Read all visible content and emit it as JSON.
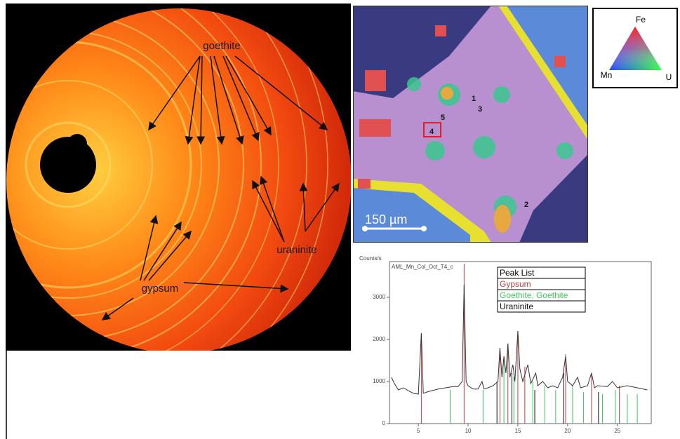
{
  "diffraction_labels": [
    "goethite",
    "uraninite",
    "gypsum"
  ],
  "map": {
    "points": [
      "1",
      "2",
      "3",
      "4",
      "5"
    ],
    "scale_bar": "150 µm"
  },
  "ternary": {
    "top": "Fe",
    "left": "Mn",
    "right": "U"
  },
  "chart_data": {
    "type": "line",
    "y_label": "Counts/s",
    "legend_title": "Peak List",
    "xlim": [
      2.1,
      28.4
    ],
    "xticks": [
      5,
      10,
      15,
      20,
      25
    ],
    "ylim": [
      0,
      3850
    ],
    "yticks": [
      0,
      1000,
      2000,
      3000
    ],
    "series": [
      {
        "name": "AML_Mn_Col_Oct_T4_c",
        "kind": "line",
        "color": "#333333",
        "x": [
          2.3,
          2.6,
          3,
          3.5,
          4,
          4.5,
          5,
          5.3,
          5.5,
          6,
          7,
          8,
          8.5,
          9,
          9.4,
          9.6,
          9.8,
          10,
          10.5,
          11,
          11.4,
          11.6,
          12,
          12.5,
          13,
          13.2,
          13.4,
          13.6,
          13.8,
          14,
          14.2,
          14.5,
          14.7,
          15,
          15.2,
          15.5,
          16,
          16.3,
          16.8,
          17,
          17.5,
          18,
          18.5,
          19,
          19.5,
          19.8,
          20,
          20.5,
          21,
          21.3,
          22,
          22.4,
          22.7,
          23,
          24,
          24.5,
          25,
          26,
          27,
          28
        ],
        "values": [
          1100,
          950,
          800,
          850,
          780,
          720,
          700,
          2150,
          720,
          760,
          820,
          860,
          880,
          880,
          1000,
          3300,
          1000,
          900,
          820,
          820,
          1000,
          820,
          850,
          900,
          1000,
          1800,
          1100,
          1600,
          1200,
          1900,
          1100,
          1400,
          1000,
          2200,
          1300,
          1000,
          1400,
          950,
          1200,
          900,
          1000,
          850,
          900,
          850,
          1100,
          1600,
          1000,
          900,
          1100,
          850,
          900,
          1200,
          850,
          900,
          880,
          1000,
          850,
          900,
          850,
          800
        ]
      },
      {
        "name": "Gypsum",
        "kind": "stick",
        "color": "#c0404a",
        "x": [
          5.3,
          9.6,
          13.2,
          14,
          15,
          15.7,
          19.8,
          22.4,
          25.2
        ],
        "values": [
          2150,
          3800,
          1800,
          1900,
          2200,
          1350,
          1650,
          1150,
          900
        ]
      },
      {
        "name": "Goethite, Goethite",
        "kind": "stick",
        "color": "#3cc85a",
        "x": [
          8.2,
          11.5,
          13.6,
          14.6,
          16.5,
          17.7,
          18.8,
          20.5,
          21.6,
          23.5,
          24.8,
          26,
          27
        ],
        "values": [
          800,
          800,
          1500,
          1100,
          1000,
          900,
          800,
          900,
          750,
          700,
          800,
          700,
          700
        ]
      },
      {
        "name": "Uraninite",
        "kind": "stick",
        "color": "#111111",
        "x": [
          12.9,
          14.4,
          16.7,
          19.6,
          23.1
        ],
        "values": [
          1000,
          1200,
          800,
          1200,
          750
        ]
      }
    ]
  }
}
